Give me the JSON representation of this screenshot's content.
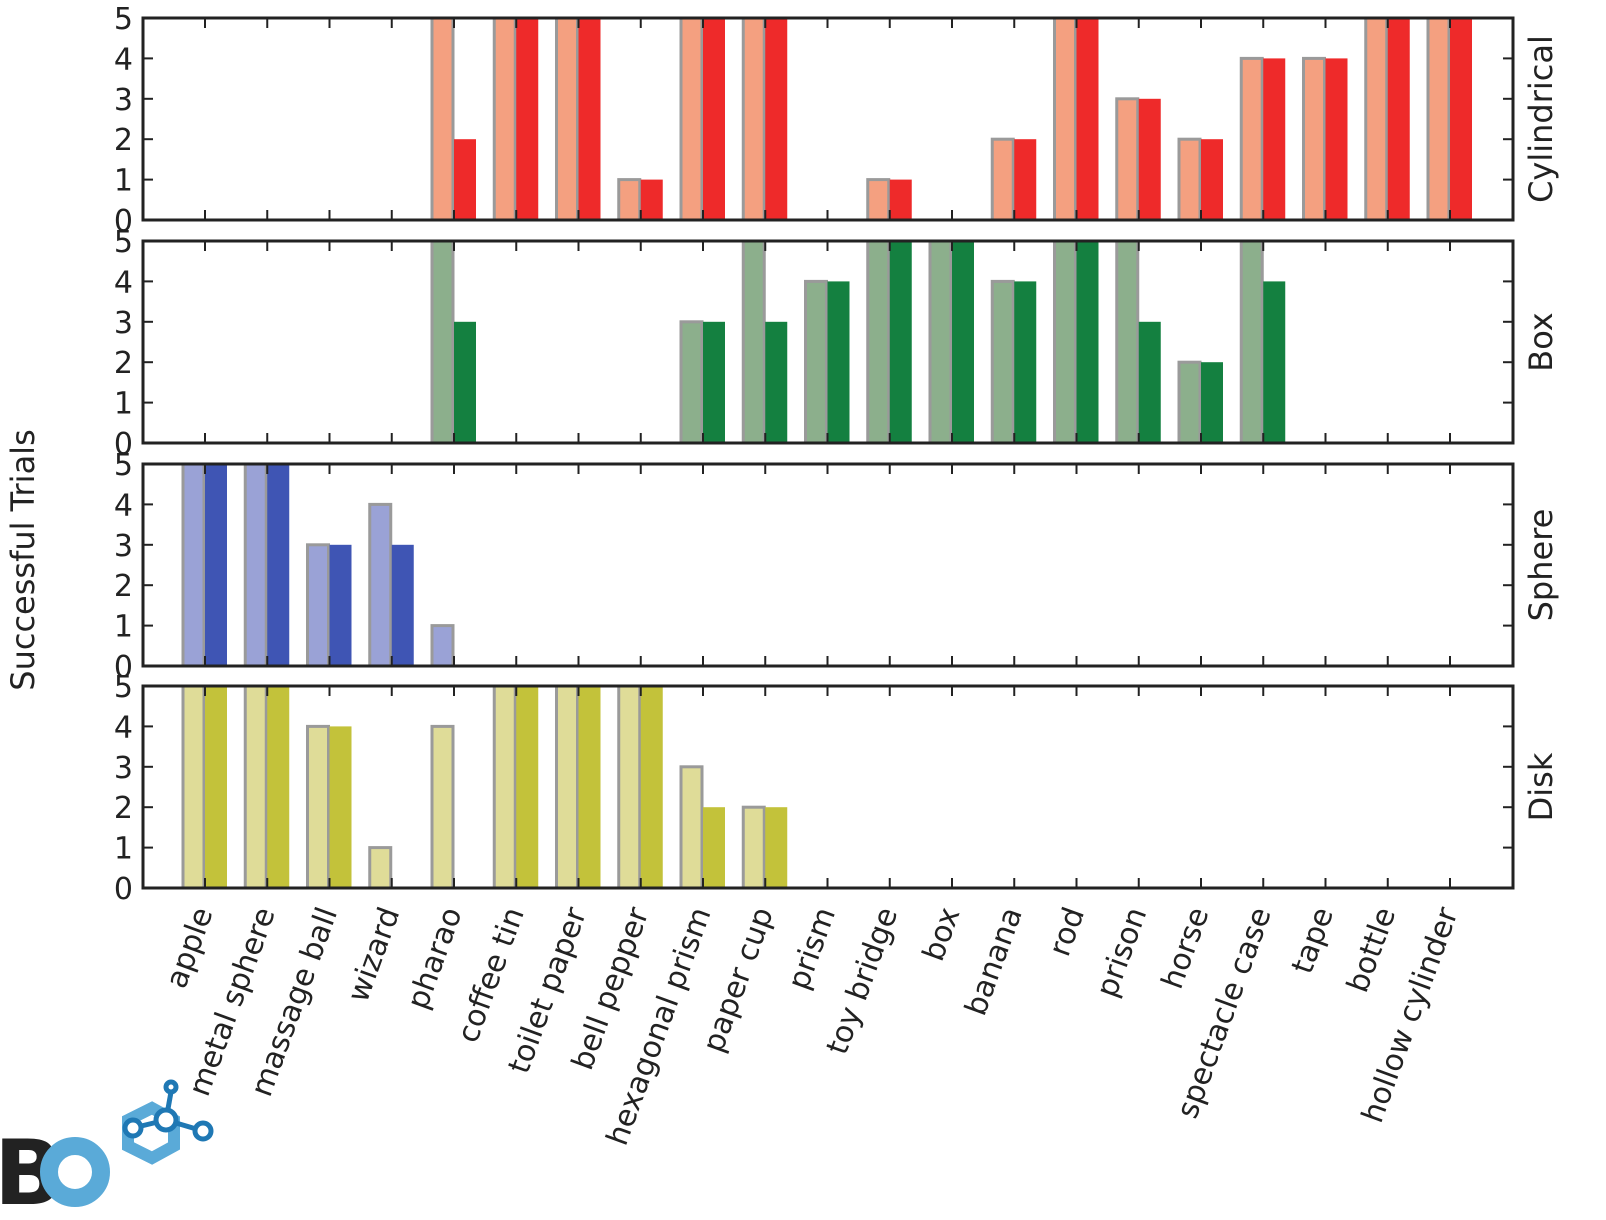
{
  "chart_data": {
    "type": "bar",
    "ylabel": "Successful Trials",
    "ylim": [
      0,
      5
    ],
    "yticks": [
      "0",
      "1",
      "2",
      "3",
      "4",
      "5"
    ],
    "grid": false,
    "categories": [
      "apple",
      "metal sphere",
      "massage ball",
      "wizard",
      "pharao",
      "coffee tin",
      "toilet paper",
      "bell pepper",
      "hexagonal prism",
      "paper cup",
      "prism",
      "toy bridge",
      "box",
      "banana",
      "rod",
      "prison",
      "horse",
      "spectacle case",
      "tape",
      "bottle",
      "hollow cylinder"
    ],
    "panels": [
      {
        "name": "Cylindrical",
        "colors": {
          "light": "#f4a080",
          "dark": "#ee2a2a"
        },
        "series": [
          {
            "values": [
              0,
              0,
              0,
              0,
              5,
              5,
              5,
              1,
              5,
              5,
              0,
              1,
              0,
              2,
              5,
              3,
              2,
              4,
              4,
              5,
              5
            ]
          },
          {
            "values": [
              0,
              0,
              0,
              0,
              2,
              5,
              5,
              1,
              5,
              5,
              0,
              1,
              0,
              2,
              5,
              3,
              2,
              4,
              4,
              5,
              5
            ]
          }
        ]
      },
      {
        "name": "Box",
        "colors": {
          "light": "#8caf8c",
          "dark": "#148040"
        },
        "series": [
          {
            "values": [
              0,
              0,
              0,
              0,
              5,
              0,
              0,
              0,
              3,
              5,
              4,
              5,
              5,
              4,
              5,
              5,
              2,
              5,
              0,
              0,
              0
            ]
          },
          {
            "values": [
              0,
              0,
              0,
              0,
              3,
              0,
              0,
              0,
              3,
              3,
              4,
              5,
              5,
              4,
              5,
              3,
              2,
              4,
              0,
              0,
              0
            ]
          }
        ]
      },
      {
        "name": "Sphere",
        "colors": {
          "light": "#9aa2d6",
          "dark": "#3f55b4"
        },
        "series": [
          {
            "values": [
              5,
              5,
              3,
              4,
              1,
              0,
              0,
              0,
              0,
              0,
              0,
              0,
              0,
              0,
              0,
              0,
              0,
              0,
              0,
              0,
              0
            ]
          },
          {
            "values": [
              5,
              5,
              3,
              3,
              0,
              0,
              0,
              0,
              0,
              0,
              0,
              0,
              0,
              0,
              0,
              0,
              0,
              0,
              0,
              0,
              0
            ]
          }
        ]
      },
      {
        "name": "Disk",
        "colors": {
          "light": "#dfdc98",
          "dark": "#c3c23a"
        },
        "series": [
          {
            "values": [
              5,
              5,
              4,
              1,
              4,
              5,
              5,
              5,
              3,
              2,
              0,
              0,
              0,
              0,
              0,
              0,
              0,
              0,
              0,
              0,
              0
            ]
          },
          {
            "values": [
              5,
              5,
              4,
              0,
              0,
              5,
              5,
              5,
              2,
              2,
              0,
              0,
              0,
              0,
              0,
              0,
              0,
              0,
              0,
              0,
              0
            ]
          }
        ]
      }
    ]
  },
  "logo": {
    "text": "BO",
    "colors": {
      "b": "#b01818",
      "o": "#5aaad8",
      "molecule": "#1f78b4"
    }
  }
}
